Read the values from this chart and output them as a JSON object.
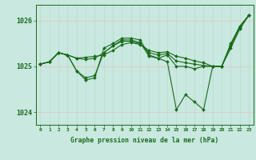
{
  "bg_color": "#c8e8e0",
  "line_color": "#1a6b1a",
  "grid_color_v": "#b8d8d0",
  "grid_color_h": "#e8c0c0",
  "xlabel_label": "Graphe pression niveau de la mer (hPa)",
  "xlim": [
    -0.5,
    23.5
  ],
  "ylim": [
    1023.72,
    1026.35
  ],
  "yticks": [
    1024,
    1025,
    1026
  ],
  "xticks": [
    0,
    1,
    2,
    3,
    4,
    5,
    6,
    7,
    8,
    9,
    10,
    11,
    12,
    13,
    14,
    15,
    16,
    17,
    18,
    19,
    20,
    21,
    22,
    23
  ],
  "line1": [
    1025.05,
    1025.1,
    1025.3,
    1025.25,
    1024.9,
    1024.7,
    1024.75,
    1025.4,
    1025.5,
    1025.62,
    1025.62,
    1025.58,
    1025.25,
    1025.18,
    1025.1,
    1024.05,
    1024.38,
    1024.22,
    1024.05,
    1025.0,
    1025.0,
    1025.5,
    1025.88,
    1026.12
  ],
  "line2": [
    1025.05,
    1025.1,
    1025.3,
    1025.25,
    1024.9,
    1024.75,
    1024.8,
    1025.3,
    1025.45,
    1025.58,
    1025.58,
    1025.52,
    1025.22,
    1025.18,
    1025.25,
    1025.0,
    1025.0,
    1024.95,
    1025.0,
    1025.0,
    1025.0,
    1025.48,
    1025.88,
    1026.12
  ],
  "line3": [
    1025.05,
    1025.1,
    1025.3,
    1025.25,
    1025.18,
    1025.15,
    1025.18,
    1025.3,
    1025.45,
    1025.55,
    1025.55,
    1025.5,
    1025.3,
    1025.25,
    1025.28,
    1025.12,
    1025.08,
    1025.05,
    1025.02,
    1025.0,
    1025.0,
    1025.45,
    1025.85,
    1026.12
  ],
  "line4": [
    1025.05,
    1025.1,
    1025.3,
    1025.25,
    1025.18,
    1025.2,
    1025.22,
    1025.25,
    1025.35,
    1025.48,
    1025.52,
    1025.48,
    1025.35,
    1025.3,
    1025.32,
    1025.22,
    1025.18,
    1025.12,
    1025.08,
    1025.0,
    1025.0,
    1025.4,
    1025.82,
    1026.12
  ]
}
